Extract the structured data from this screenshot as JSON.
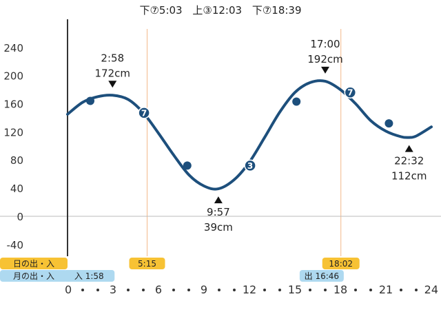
{
  "header": {
    "events": [
      "下⑦5:03",
      "上③12:03",
      "下⑦18:39"
    ]
  },
  "chart_data": {
    "type": "line",
    "xlim": [
      0,
      24
    ],
    "ylim": [
      -50,
      280
    ],
    "y_ticks": [
      240,
      200,
      160,
      120,
      80,
      40,
      0,
      -40
    ],
    "x_ticks": [
      0,
      3,
      6,
      9,
      12,
      15,
      18,
      21,
      24
    ],
    "tide_curve": {
      "x": [
        0,
        1,
        2,
        2.967,
        4,
        5,
        6,
        7,
        8,
        9,
        9.95,
        11,
        12,
        13,
        14,
        15,
        16,
        17,
        18,
        19,
        20,
        21,
        22,
        22.533,
        23,
        24
      ],
      "y": [
        145,
        162,
        170,
        172,
        166,
        147,
        118,
        87,
        59,
        43,
        39,
        52,
        77,
        112,
        148,
        176,
        190,
        192,
        180,
        160,
        136,
        121,
        113,
        112,
        114,
        127
      ]
    },
    "extremes": [
      {
        "time": "2:58",
        "height": "172cm",
        "x": 2.967,
        "y": 172,
        "kind": "high"
      },
      {
        "time": "9:57",
        "height": "39cm",
        "x": 9.95,
        "y": 39,
        "kind": "low"
      },
      {
        "time": "17:00",
        "height": "192cm",
        "x": 17.0,
        "y": 192,
        "kind": "high"
      },
      {
        "time": "22:32",
        "height": "112cm",
        "x": 22.533,
        "y": 112,
        "kind": "low"
      }
    ],
    "moon_markers": [
      {
        "x": 1.5,
        "y": 164,
        "label": ""
      },
      {
        "x": 5.05,
        "y": 147,
        "label": "7"
      },
      {
        "x": 7.9,
        "y": 72,
        "label": ""
      },
      {
        "x": 12.05,
        "y": 72,
        "label": "3"
      },
      {
        "x": 15.1,
        "y": 163,
        "label": ""
      },
      {
        "x": 18.65,
        "y": 176,
        "label": "7"
      },
      {
        "x": 21.2,
        "y": 132,
        "label": ""
      }
    ],
    "sunrise": {
      "time": "5:15",
      "x": 5.25
    },
    "sunset": {
      "time": "18:02",
      "x": 18.033
    },
    "moonrise": {
      "time": "1:58",
      "prefix": "入",
      "text": "入 1:58",
      "x": 1.967
    },
    "moonset": {
      "time": "16:46",
      "prefix": "出",
      "text": "出 16:46",
      "x": 16.767
    },
    "sun_label": "日の出・入",
    "moon_label": "月の出・入",
    "colors": {
      "curve": "#1d4f7c",
      "marker": "#1d4f7c",
      "sun_badge": "#f7c234",
      "moon_badge": "#aed9f0",
      "sun_line": "#f3b98a",
      "axis": "#333333",
      "zero_line": "#bbbbbb"
    }
  }
}
